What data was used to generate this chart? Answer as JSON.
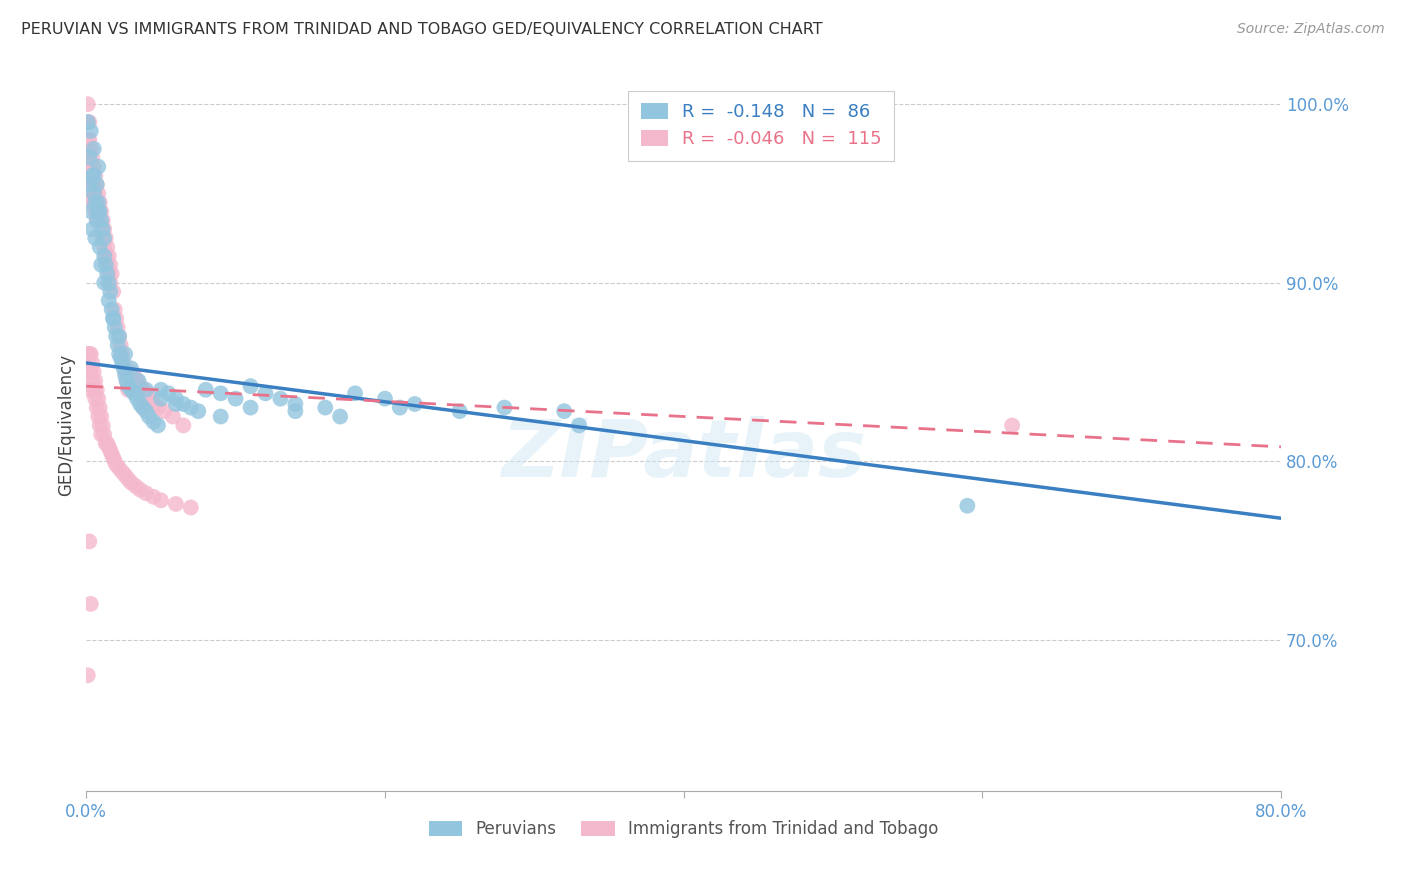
{
  "title": "PERUVIAN VS IMMIGRANTS FROM TRINIDAD AND TOBAGO GED/EQUIVALENCY CORRELATION CHART",
  "source": "Source: ZipAtlas.com",
  "ylabel": "GED/Equivalency",
  "xlim": [
    0.0,
    0.8
  ],
  "ylim": [
    0.615,
    1.025
  ],
  "x_ticks": [
    0.0,
    0.2,
    0.4,
    0.6,
    0.8
  ],
  "x_tick_labels": [
    "0.0%",
    "",
    "",
    "",
    "80.0%"
  ],
  "y_tick_labels": [
    "70.0%",
    "80.0%",
    "90.0%",
    "100.0%"
  ],
  "y_ticks": [
    0.7,
    0.8,
    0.9,
    1.0
  ],
  "blue_R": "-0.148",
  "blue_N": "86",
  "pink_R": "-0.046",
  "pink_N": "115",
  "blue_color": "#92c5de",
  "pink_color": "#f4b8cc",
  "blue_line_color": "#3a7fc1",
  "pink_line_color": "#e8728a",
  "legend_label_blue": "Peruvians",
  "legend_label_pink": "Immigrants from Trinidad and Tobago",
  "watermark": "ZIPatlas",
  "blue_line_x0": 0.0,
  "blue_line_y0": 0.855,
  "blue_line_x1": 0.8,
  "blue_line_y1": 0.768,
  "pink_line_x0": 0.0,
  "pink_line_y0": 0.842,
  "pink_line_x1": 0.8,
  "pink_line_y1": 0.808,
  "blue_x": [
    0.001,
    0.002,
    0.002,
    0.003,
    0.003,
    0.004,
    0.004,
    0.005,
    0.005,
    0.006,
    0.006,
    0.007,
    0.007,
    0.008,
    0.008,
    0.009,
    0.009,
    0.01,
    0.011,
    0.012,
    0.012,
    0.013,
    0.014,
    0.015,
    0.016,
    0.017,
    0.018,
    0.019,
    0.02,
    0.021,
    0.022,
    0.023,
    0.024,
    0.025,
    0.026,
    0.027,
    0.028,
    0.03,
    0.032,
    0.034,
    0.036,
    0.038,
    0.04,
    0.042,
    0.045,
    0.048,
    0.05,
    0.055,
    0.06,
    0.065,
    0.07,
    0.08,
    0.09,
    0.1,
    0.11,
    0.12,
    0.13,
    0.14,
    0.16,
    0.18,
    0.2,
    0.22,
    0.25,
    0.28,
    0.32,
    0.005,
    0.008,
    0.01,
    0.012,
    0.015,
    0.018,
    0.022,
    0.026,
    0.03,
    0.035,
    0.04,
    0.05,
    0.06,
    0.075,
    0.09,
    0.11,
    0.14,
    0.17,
    0.21,
    0.59,
    0.33
  ],
  "blue_y": [
    0.99,
    0.97,
    0.955,
    0.94,
    0.985,
    0.96,
    0.93,
    0.95,
    0.975,
    0.945,
    0.925,
    0.935,
    0.955,
    0.945,
    0.965,
    0.92,
    0.94,
    0.935,
    0.93,
    0.925,
    0.915,
    0.91,
    0.905,
    0.9,
    0.895,
    0.885,
    0.88,
    0.875,
    0.87,
    0.865,
    0.86,
    0.858,
    0.855,
    0.852,
    0.848,
    0.845,
    0.842,
    0.84,
    0.838,
    0.835,
    0.832,
    0.83,
    0.828,
    0.825,
    0.822,
    0.82,
    0.84,
    0.838,
    0.835,
    0.832,
    0.83,
    0.84,
    0.838,
    0.835,
    0.842,
    0.838,
    0.835,
    0.832,
    0.83,
    0.838,
    0.835,
    0.832,
    0.828,
    0.83,
    0.828,
    0.96,
    0.94,
    0.91,
    0.9,
    0.89,
    0.88,
    0.87,
    0.86,
    0.852,
    0.845,
    0.84,
    0.835,
    0.832,
    0.828,
    0.825,
    0.83,
    0.828,
    0.825,
    0.83,
    0.775,
    0.82
  ],
  "pink_x": [
    0.001,
    0.001,
    0.001,
    0.001,
    0.001,
    0.002,
    0.002,
    0.002,
    0.002,
    0.003,
    0.003,
    0.003,
    0.003,
    0.004,
    0.004,
    0.004,
    0.005,
    0.005,
    0.005,
    0.006,
    0.006,
    0.006,
    0.007,
    0.007,
    0.007,
    0.008,
    0.008,
    0.009,
    0.009,
    0.01,
    0.01,
    0.011,
    0.011,
    0.012,
    0.012,
    0.013,
    0.013,
    0.014,
    0.014,
    0.015,
    0.015,
    0.016,
    0.016,
    0.017,
    0.018,
    0.019,
    0.02,
    0.021,
    0.022,
    0.023,
    0.024,
    0.025,
    0.026,
    0.027,
    0.028,
    0.03,
    0.032,
    0.034,
    0.036,
    0.038,
    0.04,
    0.042,
    0.045,
    0.048,
    0.052,
    0.058,
    0.065,
    0.001,
    0.001,
    0.001,
    0.002,
    0.002,
    0.003,
    0.003,
    0.004,
    0.004,
    0.005,
    0.005,
    0.006,
    0.006,
    0.007,
    0.007,
    0.008,
    0.008,
    0.009,
    0.009,
    0.01,
    0.01,
    0.011,
    0.012,
    0.013,
    0.014,
    0.015,
    0.016,
    0.017,
    0.018,
    0.019,
    0.02,
    0.022,
    0.024,
    0.026,
    0.028,
    0.03,
    0.033,
    0.036,
    0.04,
    0.045,
    0.05,
    0.06,
    0.07,
    0.002,
    0.003,
    0.038,
    0.62,
    0.001
  ],
  "pink_y": [
    1.0,
    0.99,
    0.98,
    0.975,
    0.965,
    0.99,
    0.98,
    0.97,
    0.96,
    0.975,
    0.965,
    0.955,
    0.945,
    0.97,
    0.96,
    0.95,
    0.965,
    0.955,
    0.945,
    0.96,
    0.95,
    0.94,
    0.955,
    0.945,
    0.935,
    0.95,
    0.94,
    0.945,
    0.935,
    0.94,
    0.93,
    0.935,
    0.925,
    0.93,
    0.92,
    0.925,
    0.915,
    0.92,
    0.91,
    0.915,
    0.905,
    0.91,
    0.9,
    0.905,
    0.895,
    0.885,
    0.88,
    0.875,
    0.87,
    0.865,
    0.86,
    0.855,
    0.85,
    0.845,
    0.84,
    0.85,
    0.848,
    0.845,
    0.842,
    0.84,
    0.838,
    0.835,
    0.832,
    0.83,
    0.828,
    0.825,
    0.82,
    0.86,
    0.85,
    0.84,
    0.86,
    0.85,
    0.86,
    0.85,
    0.855,
    0.845,
    0.85,
    0.84,
    0.845,
    0.835,
    0.84,
    0.83,
    0.835,
    0.825,
    0.83,
    0.82,
    0.825,
    0.815,
    0.82,
    0.815,
    0.81,
    0.81,
    0.808,
    0.806,
    0.804,
    0.802,
    0.8,
    0.798,
    0.796,
    0.794,
    0.792,
    0.79,
    0.788,
    0.786,
    0.784,
    0.782,
    0.78,
    0.778,
    0.776,
    0.774,
    0.755,
    0.72,
    0.83,
    0.82,
    0.68
  ]
}
